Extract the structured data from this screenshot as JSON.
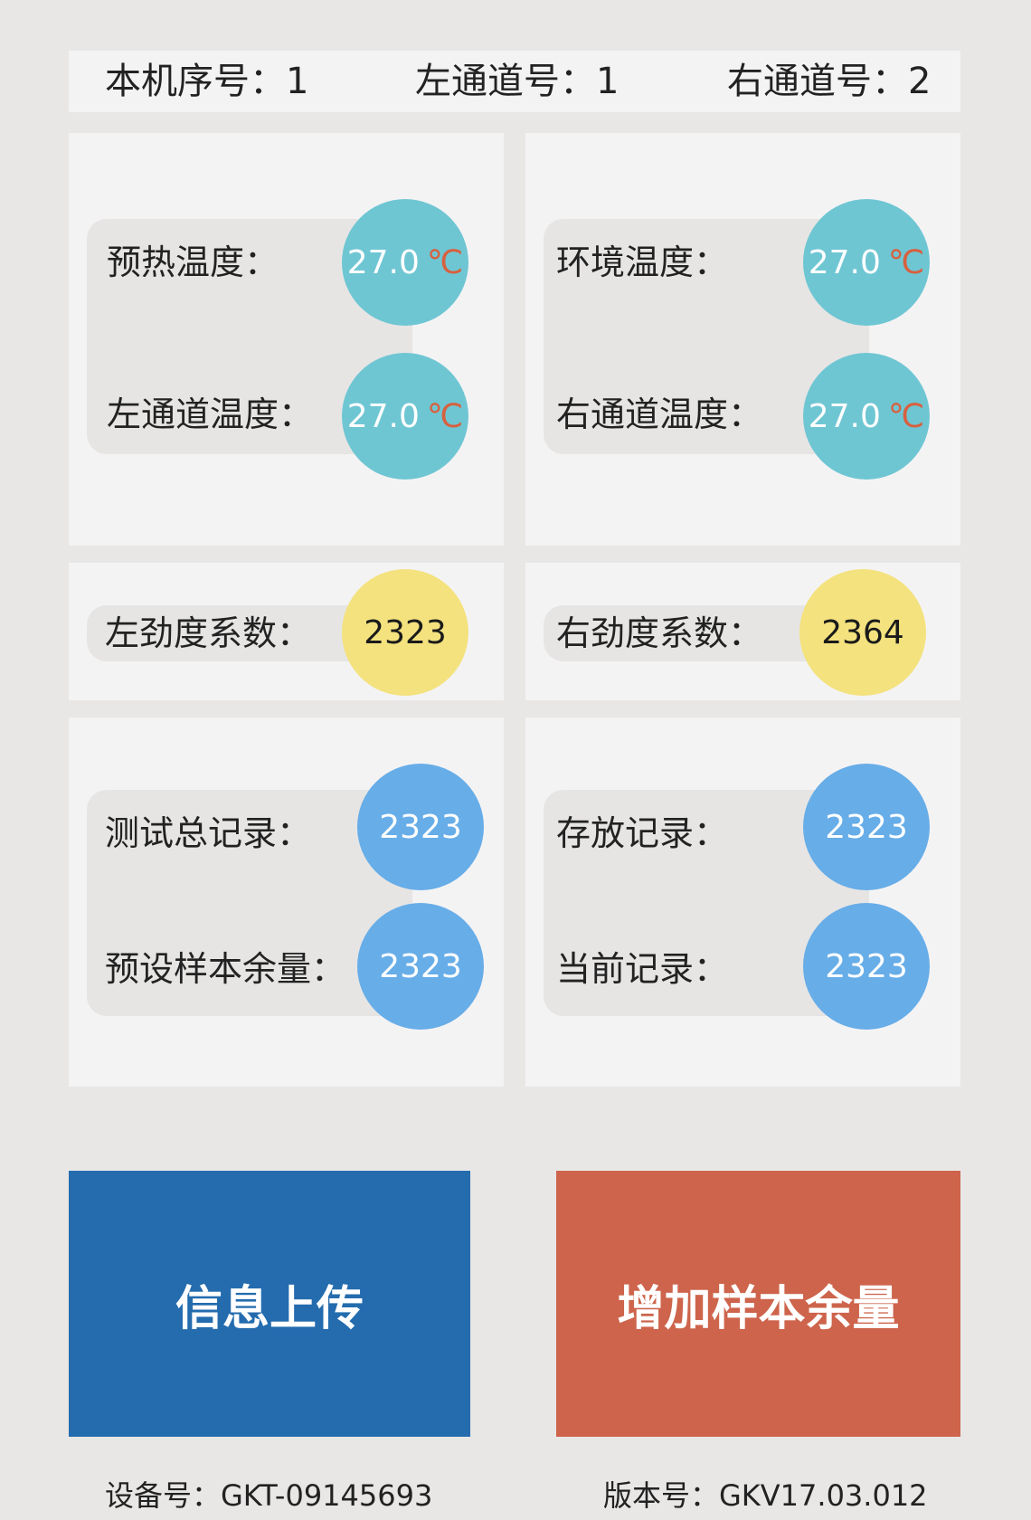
{
  "header": {
    "machine_no": "本机序号：1",
    "left_channel_no": "左通道号：1",
    "right_channel_no": "右通道号：2"
  },
  "temperature": {
    "preheat_label": "预热温度：",
    "preheat_value": "27.0",
    "left_channel_label": "左通道温度：",
    "left_channel_value": "27.0",
    "ambient_label": "环境温度：",
    "ambient_value": "27.0",
    "right_channel_label": "右通道温度：",
    "right_channel_value": "27.0",
    "unit": "℃"
  },
  "stiffness": {
    "left_label": "左劲度系数：",
    "left_value": "2323",
    "right_label": "右劲度系数：",
    "right_value": "2364"
  },
  "records": {
    "total_label": "测试总记录：",
    "total_value": "2323",
    "preset_remaining_label": "预设样本余量：",
    "preset_remaining_value": "2323",
    "stored_label": "存放记录：",
    "stored_value": "2323",
    "current_label": "当前记录：",
    "current_value": "2323"
  },
  "buttons": {
    "upload_label": "信息上传",
    "add_sample_label": "增加样本余量"
  },
  "footer": {
    "device_no": "设备号：GKT-09145693",
    "version_no": "版本号：GKV17.03.012"
  },
  "colors": {
    "temp_circle": "#6fc6d3",
    "stiffness_circle": "#f3e27e",
    "record_circle": "#67ade8",
    "upload_button": "#246cae",
    "add_button": "#cd644b",
    "unit_text": "#d8603f"
  }
}
